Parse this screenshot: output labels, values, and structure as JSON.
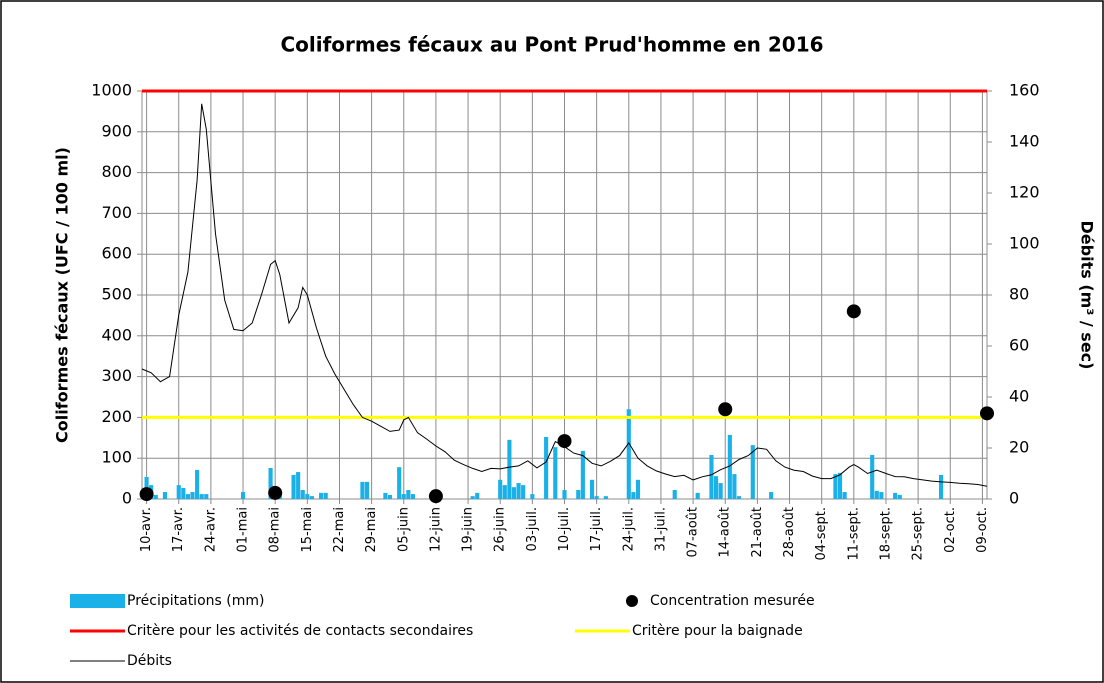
{
  "chart_data": {
    "type": "combo",
    "title": "Coliformes fécaux au Pont Prud'homme en 2016",
    "ylabel": "Coliformes fécaux (UFC / 100 ml)",
    "y2label": "Débits  (m³ / sec)",
    "xlim": [
      100,
      284
    ],
    "xticks": [
      {
        "value": 101,
        "label": "10-avr."
      },
      {
        "value": 108,
        "label": "17-avr."
      },
      {
        "value": 115,
        "label": "24-avr."
      },
      {
        "value": 122,
        "label": "01-mai"
      },
      {
        "value": 129,
        "label": "08-mai"
      },
      {
        "value": 136,
        "label": "15-mai"
      },
      {
        "value": 143,
        "label": "22-mai"
      },
      {
        "value": 150,
        "label": "29-mai"
      },
      {
        "value": 157,
        "label": "05-juin"
      },
      {
        "value": 164,
        "label": "12-juin"
      },
      {
        "value": 171,
        "label": "19-juin"
      },
      {
        "value": 178,
        "label": "26-juin"
      },
      {
        "value": 185,
        "label": "03-juil."
      },
      {
        "value": 192,
        "label": "10-juil."
      },
      {
        "value": 199,
        "label": "17-juil."
      },
      {
        "value": 206,
        "label": "24-juil."
      },
      {
        "value": 213,
        "label": "31-juil."
      },
      {
        "value": 220,
        "label": "07-août"
      },
      {
        "value": 227,
        "label": "14-août"
      },
      {
        "value": 234,
        "label": "21-août"
      },
      {
        "value": 241,
        "label": "28-août"
      },
      {
        "value": 248,
        "label": "04-sept."
      },
      {
        "value": 255,
        "label": "11-sept."
      },
      {
        "value": 262,
        "label": "18-sept."
      },
      {
        "value": 269,
        "label": "25-sept."
      },
      {
        "value": 276,
        "label": "02-oct."
      },
      {
        "value": 283,
        "label": "09-oct."
      }
    ],
    "ylim": [
      0,
      1000
    ],
    "yticks": [
      0,
      100,
      200,
      300,
      400,
      500,
      600,
      700,
      800,
      900,
      1000
    ],
    "y2lim": [
      0,
      160
    ],
    "y2ticks": [
      0,
      20,
      40,
      60,
      80,
      100,
      120,
      140,
      160
    ],
    "grid": true,
    "series": [
      {
        "name": "Précipitations (mm)",
        "type": "bar",
        "color": "#1ab0e8",
        "x": [
          101,
          102,
          103,
          105,
          108,
          109,
          110,
          111,
          112,
          113,
          114,
          122,
          128,
          129,
          130,
          133,
          134,
          135,
          136,
          137,
          139,
          140,
          148,
          149,
          153,
          154,
          156,
          157,
          158,
          159,
          172,
          173,
          178,
          179,
          180,
          181,
          182,
          183,
          185,
          188,
          190,
          192,
          195,
          196,
          198,
          199,
          201,
          206,
          207,
          208,
          216,
          221,
          224,
          225,
          226,
          228,
          229,
          230,
          233,
          237,
          251,
          252,
          253,
          259,
          260,
          261,
          264,
          265,
          274
        ],
        "values": [
          54,
          34,
          10,
          17,
          34,
          27,
          12,
          17,
          71,
          12,
          12,
          17,
          76,
          12,
          12,
          59,
          66,
          22,
          12,
          7,
          15,
          15,
          42,
          42,
          15,
          10,
          78,
          12,
          22,
          12,
          7,
          15,
          47,
          34,
          145,
          29,
          39,
          34,
          12,
          152,
          127,
          22,
          22,
          118,
          47,
          7,
          7,
          220,
          17,
          47,
          22,
          15,
          108,
          56,
          39,
          157,
          61,
          7,
          132,
          17,
          61,
          64,
          17,
          108,
          20,
          17,
          15,
          10,
          59
        ]
      },
      {
        "name": "Concentration mesurée",
        "type": "scatter",
        "color": "#000000",
        "x": [
          101,
          129,
          164,
          192,
          227,
          255,
          284
        ],
        "values": [
          12,
          15,
          7,
          142,
          220,
          460,
          210
        ]
      },
      {
        "name": "Critère pour les activités de contacts secondaires",
        "type": "hline",
        "color": "#ff0000",
        "value": 1000
      },
      {
        "name": "Critère pour la baignade",
        "type": "hline",
        "color": "#ffff00",
        "value": 200
      },
      {
        "name": "Débits",
        "type": "line",
        "color": "#000000",
        "axis": "y2",
        "x": [
          100,
          102,
          104,
          106,
          108,
          110,
          112,
          113,
          114,
          116,
          118,
          120,
          122,
          124,
          126,
          128,
          129,
          130,
          132,
          134,
          135,
          136,
          138,
          140,
          142,
          144,
          146,
          148,
          150,
          152,
          154,
          156,
          157,
          158,
          160,
          162,
          164,
          166,
          168,
          170,
          172,
          174,
          176,
          178,
          180,
          182,
          184,
          186,
          188,
          190,
          192,
          194,
          196,
          198,
          200,
          202,
          204,
          206,
          208,
          210,
          212,
          214,
          216,
          218,
          220,
          222,
          224,
          226,
          228,
          230,
          232,
          234,
          236,
          238,
          240,
          242,
          244,
          246,
          248,
          250,
          252,
          254,
          255,
          256,
          258,
          260,
          262,
          264,
          266,
          268,
          270,
          272,
          274,
          276,
          278,
          280,
          282,
          284
        ],
        "values": [
          51,
          49.5,
          46,
          48,
          72,
          89,
          125,
          155,
          145,
          104,
          78,
          66.5,
          66,
          69,
          80,
          92,
          93.5,
          88,
          69,
          75,
          83,
          80,
          67,
          56,
          49,
          43,
          37,
          32,
          30.5,
          28.5,
          26.5,
          27,
          31,
          32,
          26,
          23.5,
          20.8,
          18.5,
          15.2,
          13.5,
          12,
          10.8,
          12,
          11.8,
          12.5,
          13,
          15,
          12.2,
          14.5,
          22.5,
          20.5,
          18,
          17,
          14,
          13,
          14.8,
          17,
          22,
          16,
          13,
          11,
          9.8,
          8.8,
          9.3,
          7.5,
          8.7,
          9.5,
          11.5,
          13,
          15.5,
          17,
          20,
          19.5,
          15,
          12.5,
          11.3,
          10.8,
          9,
          8,
          8,
          9.5,
          12.5,
          13.5,
          12.5,
          10,
          11.3,
          10,
          8.8,
          8.7,
          8,
          7.5,
          7,
          6.7,
          6.5,
          6.2,
          6,
          5.7,
          5
        ]
      }
    ]
  }
}
